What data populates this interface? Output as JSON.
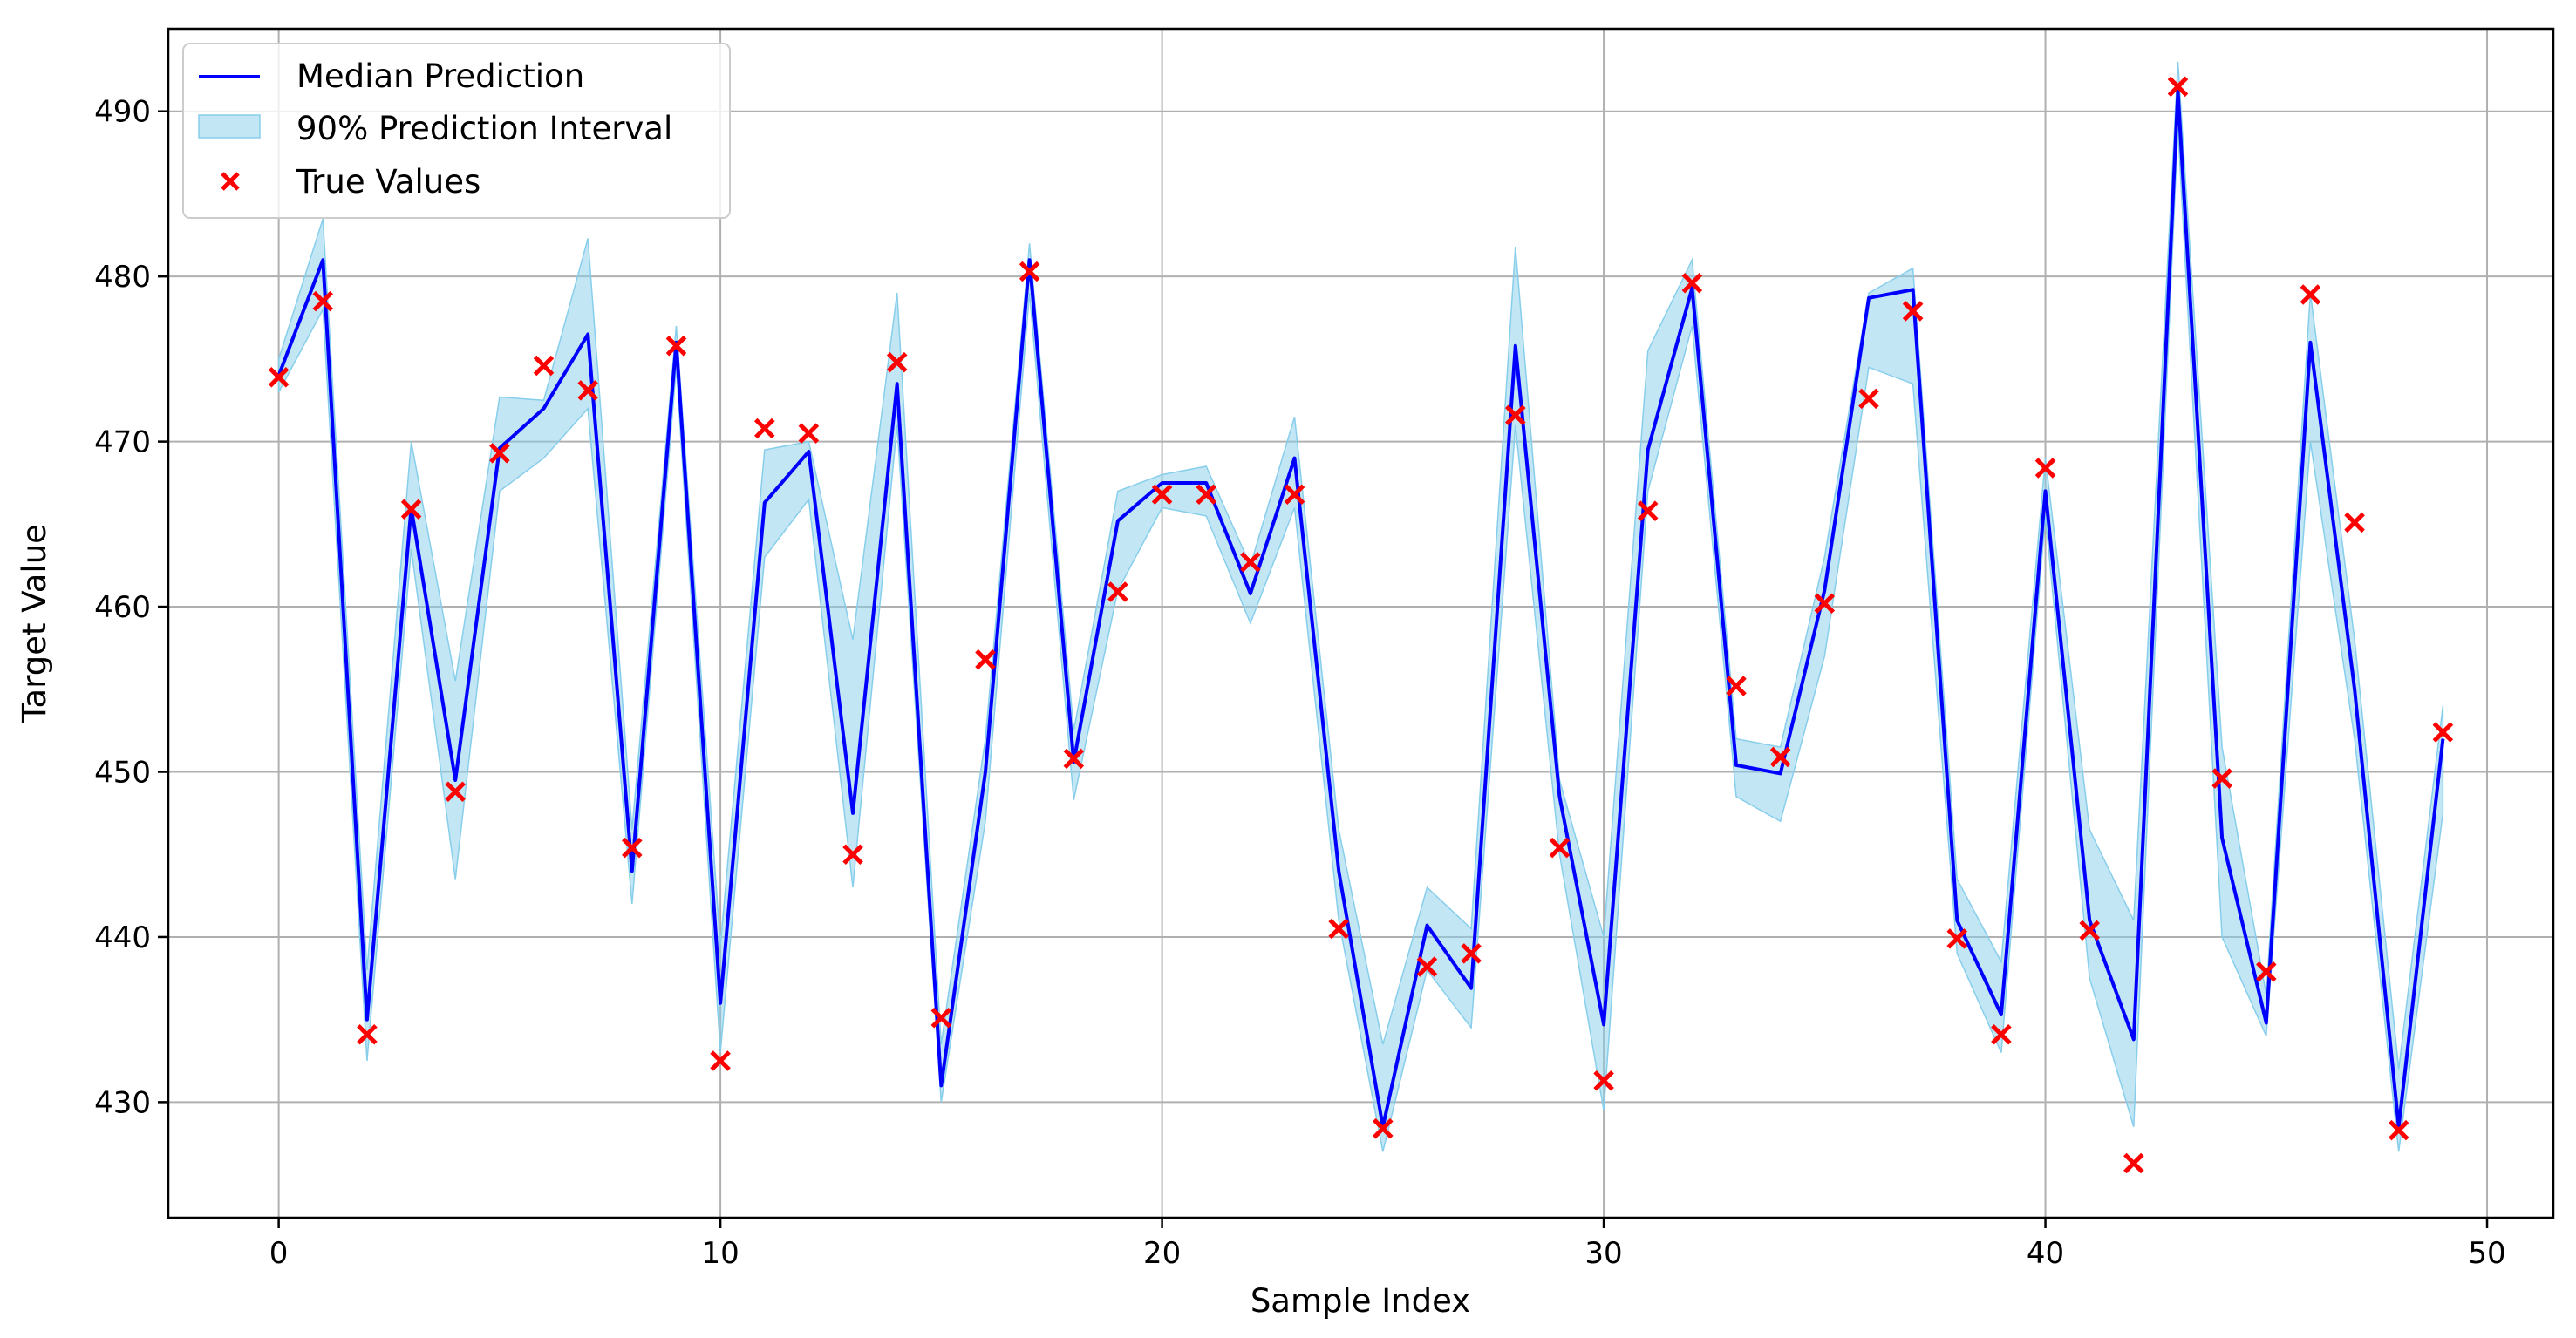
{
  "chart_data": {
    "type": "line",
    "title": "",
    "xlabel": "Sample Index",
    "ylabel": "Target Value",
    "xlim": [
      -2.5,
      51.5
    ],
    "ylim": [
      423,
      495
    ],
    "xticks": [
      0,
      10,
      20,
      30,
      40,
      50
    ],
    "yticks": [
      430,
      440,
      450,
      460,
      470,
      480,
      490
    ],
    "grid": true,
    "legend_position": "top-left",
    "x": [
      0,
      1,
      2,
      3,
      4,
      5,
      6,
      7,
      8,
      9,
      10,
      11,
      12,
      13,
      14,
      15,
      16,
      17,
      18,
      19,
      20,
      21,
      22,
      23,
      24,
      25,
      26,
      27,
      28,
      29,
      30,
      31,
      32,
      33,
      34,
      35,
      36,
      37,
      38,
      39,
      40,
      41,
      42,
      43,
      44,
      45,
      46,
      47,
      48,
      49
    ],
    "series": [
      {
        "name": "Median Prediction",
        "kind": "line",
        "color": "#0000ff",
        "values": [
          474.0,
          481.0,
          435.0,
          466.0,
          449.5,
          469.6,
          472.0,
          476.5,
          444.0,
          476.0,
          436.0,
          466.3,
          469.4,
          447.5,
          473.5,
          431.0,
          450.0,
          481.0,
          450.6,
          465.2,
          467.5,
          467.5,
          460.8,
          469.0,
          444.0,
          428.5,
          440.7,
          436.9,
          475.8,
          448.5,
          434.7,
          469.5,
          479.3,
          450.4,
          449.9,
          461.0,
          478.7,
          479.2,
          441.0,
          435.3,
          467.0,
          441.0,
          433.8,
          491.2,
          446.0,
          434.8,
          476.0,
          455.0,
          428.5,
          452.0
        ]
      },
      {
        "name": "90% Prediction Interval",
        "kind": "band",
        "color": "#87ceeb",
        "lower": [
          473.0,
          478.0,
          432.5,
          463.5,
          443.5,
          467.0,
          469.0,
          472.0,
          442.0,
          474.5,
          433.0,
          463.0,
          466.5,
          443.0,
          471.0,
          430.0,
          447.0,
          479.0,
          448.3,
          461.0,
          466.0,
          465.5,
          459.0,
          466.0,
          441.0,
          427.0,
          438.0,
          434.5,
          471.0,
          445.0,
          429.5,
          467.0,
          477.0,
          448.5,
          447.0,
          457.0,
          474.5,
          473.5,
          439.0,
          433.0,
          465.5,
          437.5,
          428.5,
          489.0,
          440.0,
          434.0,
          470.0,
          452.0,
          427.0,
          447.5
        ],
        "upper": [
          475.0,
          483.5,
          438.0,
          470.0,
          455.5,
          472.7,
          472.5,
          482.3,
          446.5,
          477.0,
          439.5,
          469.5,
          470.0,
          458.0,
          479.0,
          433.5,
          452.0,
          482.0,
          452.5,
          467.0,
          468.0,
          468.5,
          462.5,
          471.5,
          446.5,
          433.5,
          443.0,
          440.5,
          481.8,
          449.5,
          440.0,
          475.5,
          481.0,
          452.0,
          451.5,
          463.0,
          479.0,
          480.5,
          443.5,
          438.5,
          469.0,
          446.5,
          441.0,
          493.0,
          451.5,
          436.5,
          479.0,
          458.0,
          432.0,
          454.0
        ]
      },
      {
        "name": "True Values",
        "kind": "scatter",
        "color": "#ff0000",
        "marker": "x",
        "values": [
          473.9,
          478.5,
          434.1,
          465.9,
          448.8,
          469.3,
          474.6,
          473.1,
          445.4,
          475.8,
          432.5,
          470.8,
          470.5,
          445.0,
          474.8,
          435.1,
          456.8,
          480.3,
          450.8,
          460.9,
          466.8,
          466.8,
          462.7,
          466.8,
          440.5,
          428.4,
          438.2,
          439.0,
          471.6,
          445.4,
          431.3,
          465.8,
          479.6,
          455.2,
          450.9,
          460.2,
          472.6,
          477.9,
          439.9,
          434.1,
          468.4,
          440.4,
          426.3,
          491.5,
          449.6,
          437.9,
          478.9,
          465.1,
          428.3,
          452.4
        ]
      }
    ]
  }
}
